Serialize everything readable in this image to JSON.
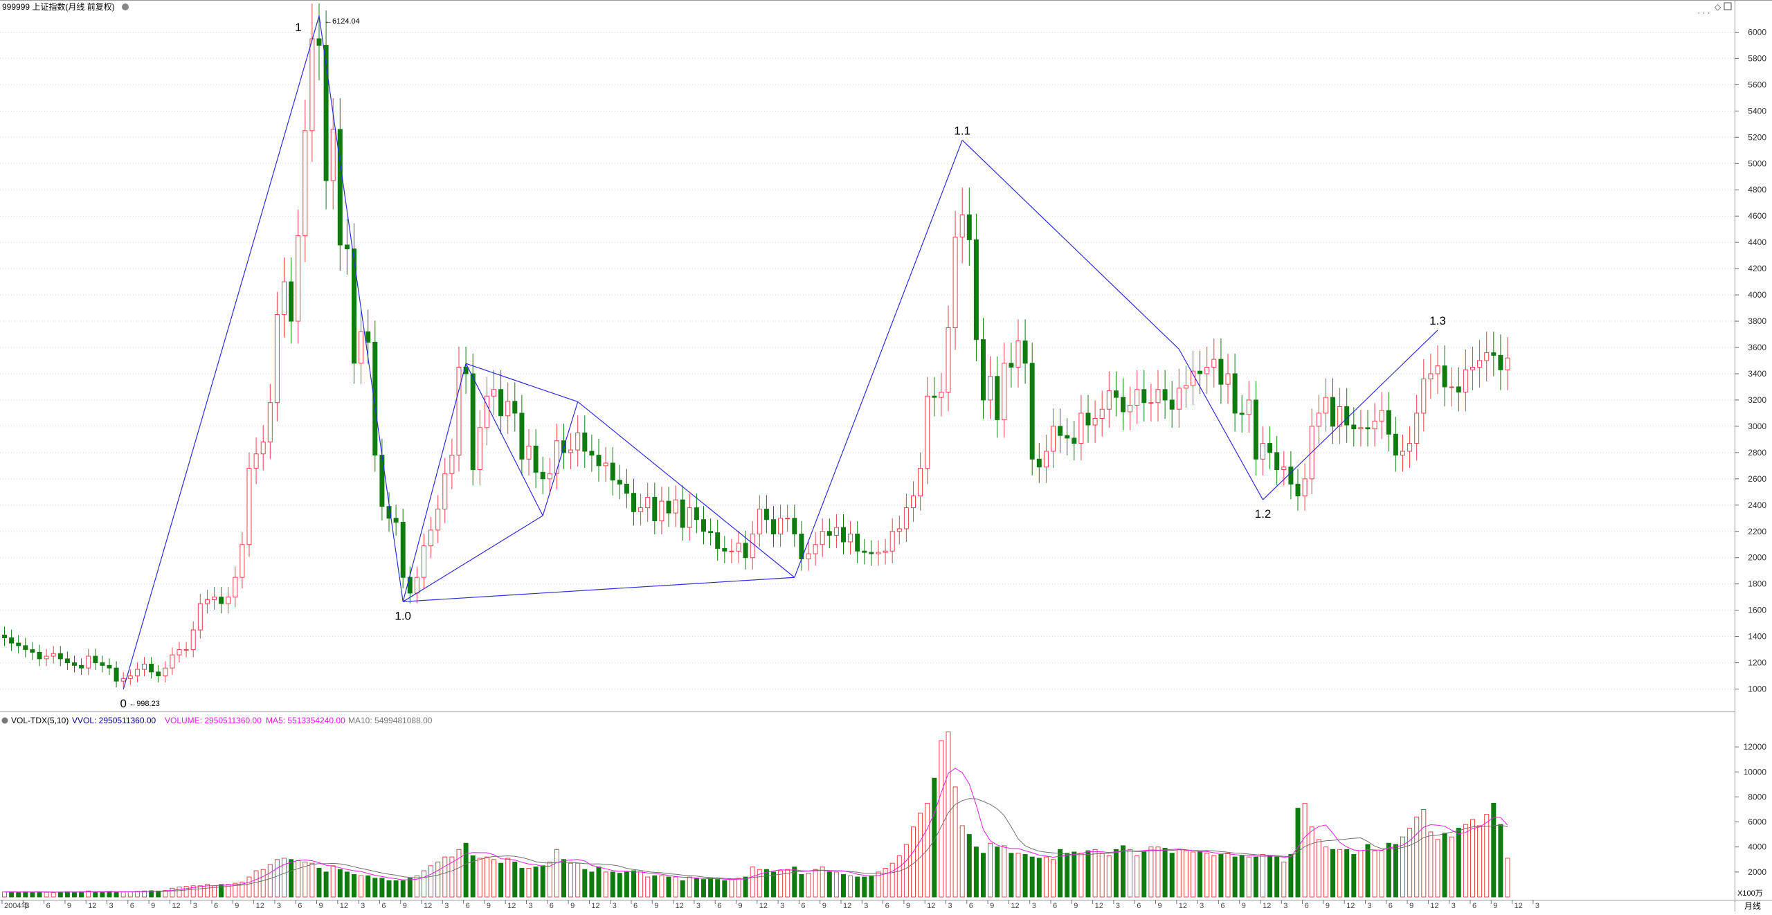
{
  "header": {
    "title": "999999 上证指数(月线 前复权)",
    "window_icons": [
      "diamond-icon",
      "restore-icon"
    ]
  },
  "vol_header": {
    "name": "VOL-TDX(5,10)",
    "vvol": "VVOL: 2950511360.00",
    "volume": "VOLUME: 2950511360.00",
    "ma5": "MA5: 5513354240.00",
    "ma10": "MA10: 5499481088.00"
  },
  "colors": {
    "up": "#e8424a",
    "down": "#107c10",
    "wave_line": "#2c2cdc",
    "ma5": "#e020e0",
    "ma10": "#707070",
    "vvol": "#00008b",
    "grid": "#d8d8d8"
  },
  "chart_data": [
    {
      "type": "candlestick",
      "title": "999999 上证指数(月线 前复权)",
      "period": "monthly",
      "y_ticks": [
        1000,
        1200,
        1400,
        1600,
        1800,
        2000,
        2200,
        2400,
        2600,
        2800,
        3000,
        3200,
        3400,
        3600,
        3800,
        4000,
        4200,
        4400,
        4600,
        4800,
        5000,
        5200,
        5400,
        5600,
        5800,
        6000
      ],
      "ylim": [
        850,
        6150
      ],
      "start": "2004-01",
      "x_ticks": [
        "2004年",
        "3",
        "6",
        "9",
        "12",
        "3",
        "6",
        "9",
        "12",
        "3",
        "6",
        "9",
        "12",
        "3",
        "6",
        "9",
        "12",
        "3",
        "6",
        "9",
        "12",
        "3",
        "6",
        "9",
        "12",
        "3",
        "6",
        "9",
        "12",
        "3",
        "6",
        "9",
        "12",
        "3",
        "6",
        "9",
        "12",
        "3",
        "6",
        "9",
        "12",
        "3",
        "6",
        "9",
        "12",
        "3",
        "6",
        "9",
        "12",
        "3",
        "6",
        "9",
        "12",
        "3",
        "6",
        "9",
        "12",
        "3",
        "6",
        "9",
        "12",
        "3",
        "6",
        "9",
        "12",
        "3",
        "6",
        "9",
        "12",
        "3",
        "6",
        "9",
        "12",
        "3"
      ],
      "closes": [
        1390,
        1350,
        1330,
        1300,
        1280,
        1230,
        1250,
        1270,
        1230,
        1200,
        1180,
        1160,
        1250,
        1200,
        1180,
        1160,
        1060,
        1080,
        1100,
        1150,
        1190,
        1130,
        1100,
        1160,
        1260,
        1300,
        1300,
        1450,
        1650,
        1680,
        1700,
        1650,
        1700,
        1850,
        2100,
        2680,
        2790,
        2880,
        3180,
        3850,
        4100,
        3800,
        4450,
        5250,
        5950,
        5900,
        4870,
        5260,
        4380,
        4350,
        3480,
        3720,
        3640,
        2780,
        2390,
        2300,
        2270,
        1850,
        1730,
        1850,
        2090,
        2210,
        2370,
        2640,
        2780,
        3450,
        3400,
        2670,
        2990,
        3230,
        3280,
        3080,
        3190,
        3100,
        2750,
        2850,
        2650,
        2600,
        2640,
        2890,
        2800,
        2820,
        2950,
        2810,
        2780,
        2700,
        2720,
        2590,
        2560,
        2490,
        2350,
        2380,
        2460,
        2280,
        2430,
        2340,
        2440,
        2230,
        2380,
        2290,
        2200,
        2190,
        2070,
        2050,
        2050,
        2110,
        2000,
        2180,
        2370,
        2290,
        2180,
        2300,
        2300,
        2180,
        1990,
        2030,
        2100,
        2200,
        2170,
        2230,
        2120,
        2180,
        2050,
        2040,
        2030,
        2040,
        2050,
        2200,
        2220,
        2380,
        2470,
        2680,
        3230,
        3220,
        3260,
        3750,
        4440,
        4610,
        4420,
        3660,
        3200,
        3380,
        3050,
        3480,
        3450,
        3650,
        3480,
        2750,
        2690,
        2810,
        3000,
        2930,
        2910,
        2870,
        3100,
        3010,
        3060,
        3130,
        3270,
        3220,
        3110,
        3160,
        3280,
        3180,
        3180,
        3280,
        3200,
        3130,
        3290,
        3310,
        3420,
        3400,
        3450,
        3510,
        3320,
        3400,
        3100,
        3090,
        3200,
        2750,
        2870,
        2800,
        2670,
        2690,
        2560,
        2470,
        2600,
        3000,
        3100,
        3220,
        3000,
        3150,
        3010,
        2980,
        2990,
        2980,
        3040,
        3120,
        2940,
        2780,
        2810,
        2870,
        3100,
        3360,
        3400,
        3460,
        3300,
        3300,
        3260,
        3430,
        3450,
        3500,
        3560,
        3540,
        3430,
        3520
      ],
      "wave_points": [
        {
          "label": "0",
          "date": "2005-06",
          "value": 998.23,
          "value_label": "998.23"
        },
        {
          "label": "1",
          "date": "2007-10",
          "value": 6124.04,
          "value_label": "6124.04"
        },
        {
          "label": "1.0",
          "date": "2008-10",
          "value": 1664.93
        },
        {
          "label": "",
          "date": "2009-07",
          "value": 3478.01
        },
        {
          "label": "",
          "date": "2010-06",
          "value": 2319.74
        },
        {
          "label": "",
          "date": "2010-11",
          "value": 3186.72
        },
        {
          "label": "",
          "date": "2013-06",
          "value": 1849.65
        },
        {
          "label": "1.1",
          "date": "2015-06",
          "value": 5178.19
        },
        {
          "label": "",
          "date": "2018-01",
          "value": 3587.03
        },
        {
          "label": "1.2",
          "date": "2019-01",
          "value": 2440.91
        },
        {
          "label": "1.3",
          "date": "2021-02",
          "value": 3731.69
        }
      ]
    },
    {
      "type": "bar",
      "title": "VOL-TDX(5,10)",
      "unit_label": "X100万",
      "y_ticks": [
        2000,
        4000,
        6000,
        8000,
        10000,
        12000
      ],
      "ylim": [
        0,
        13500
      ],
      "note": "monthly volume in X100万 units; up months hollow red, down months solid green",
      "volumes": [
        400,
        420,
        380,
        420,
        380,
        420,
        380,
        350,
        400,
        420,
        400,
        420,
        480,
        420,
        400,
        450,
        400,
        400,
        420,
        450,
        480,
        500,
        480,
        520,
        700,
        800,
        850,
        900,
        900,
        1000,
        900,
        1000,
        1000,
        1100,
        1200,
        1600,
        2100,
        2200,
        2600,
        3000,
        3100,
        3000,
        2900,
        2800,
        2700,
        2300,
        2000,
        2500,
        2200,
        2000,
        1800,
        1700,
        1700,
        1500,
        1500,
        1300,
        1300,
        1300,
        1500,
        1700,
        2100,
        2500,
        2800,
        3200,
        3200,
        3800,
        4300,
        3300,
        3100,
        3200,
        3000,
        2700,
        3100,
        2800,
        2300,
        2300,
        2400,
        2500,
        2800,
        3800,
        3000,
        2700,
        2700,
        2200,
        2000,
        2400,
        2000,
        2000,
        1900,
        2000,
        2100,
        2000,
        1600,
        1700,
        1700,
        1600,
        1600,
        1300,
        1600,
        1500,
        1400,
        1500,
        1400,
        1300,
        1400,
        1500,
        1600,
        2400,
        2200,
        2200,
        2000,
        2100,
        2200,
        2400,
        1800,
        1900,
        2200,
        2400,
        2000,
        2000,
        1800,
        1700,
        1600,
        1600,
        1700,
        2000,
        2300,
        2700,
        3300,
        4200,
        5600,
        6700,
        7500,
        9500,
        12500,
        13200,
        8800,
        5700,
        5000,
        4000,
        3500,
        4300,
        4000,
        4100,
        3500,
        3500,
        3400,
        3200,
        3100,
        3200,
        3000,
        3800,
        3500,
        3600,
        3500,
        3700,
        3800,
        3500,
        3300,
        3800,
        4100,
        3800,
        3300,
        3600,
        4000,
        4000,
        3900,
        3500,
        3800,
        3700,
        3600,
        3600,
        3500,
        3300,
        3400,
        3500,
        3200,
        3300,
        3200,
        3200,
        3400,
        3300,
        3200,
        2800,
        3400,
        7100,
        7500,
        5600,
        4600,
        4000,
        3800,
        3800,
        3800,
        3400,
        3700,
        4200,
        3700,
        3700,
        4300,
        4200,
        4800,
        5500,
        6400,
        7000,
        5200,
        4600,
        5100,
        4800,
        5500,
        5800,
        6200,
        5700,
        6600,
        7500,
        5800,
        3100
      ]
    }
  ]
}
